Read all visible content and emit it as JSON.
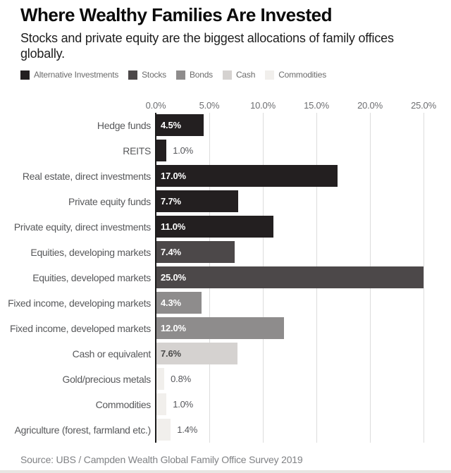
{
  "header": {
    "title": "Where Wealthy Families Are Invested",
    "subtitle": "Stocks and private equity are the biggest allocations of family offices globally."
  },
  "legend": [
    {
      "label": "Alternative Investments",
      "color": "#231f20"
    },
    {
      "label": "Stocks",
      "color": "#4c4849"
    },
    {
      "label": "Bonds",
      "color": "#8e8c8c"
    },
    {
      "label": "Cash",
      "color": "#d5d2d0"
    },
    {
      "label": "Commodities",
      "color": "#f1efec"
    }
  ],
  "chart_data": {
    "type": "bar",
    "orientation": "horizontal",
    "title": "Where Wealthy Families Are Invested",
    "xlabel": "",
    "ylabel": "",
    "xlim": [
      0,
      25.6
    ],
    "grid": true,
    "legend_position": "top",
    "x_tick_labels": [
      "0.0%",
      "5.0%",
      "10.0%",
      "15.0%",
      "20.0%",
      "25.0%"
    ],
    "x_tick_values": [
      0,
      5,
      10,
      15,
      20,
      25
    ],
    "categories": [
      "Hedge funds",
      "REITS",
      "Real estate, direct investments",
      "Private equity funds",
      "Private equity, direct investments",
      "Equities, developing markets",
      "Equities, developed markets",
      "Fixed income, developing markets",
      "Fixed income, developed markets",
      "Cash or equivalent",
      "Gold/precious metals",
      "Commodities",
      "Agriculture (forest, farmland etc.)"
    ],
    "values": [
      4.5,
      1.0,
      17.0,
      7.7,
      11.0,
      7.4,
      25.0,
      4.3,
      12.0,
      7.6,
      0.8,
      1.0,
      1.4
    ],
    "value_labels": [
      "4.5%",
      "1.0%",
      "17.0%",
      "7.7%",
      "11.0%",
      "7.4%",
      "25.0%",
      "4.3%",
      "12.0%",
      "7.6%",
      "0.8%",
      "1.0%",
      "1.4%"
    ],
    "series_group": [
      "Alternative Investments",
      "Alternative Investments",
      "Alternative Investments",
      "Alternative Investments",
      "Alternative Investments",
      "Stocks",
      "Stocks",
      "Bonds",
      "Bonds",
      "Cash",
      "Commodities",
      "Commodities",
      "Commodities"
    ]
  },
  "source": "Source: UBS / Campden Wealth Global Family Office Survey 2019"
}
